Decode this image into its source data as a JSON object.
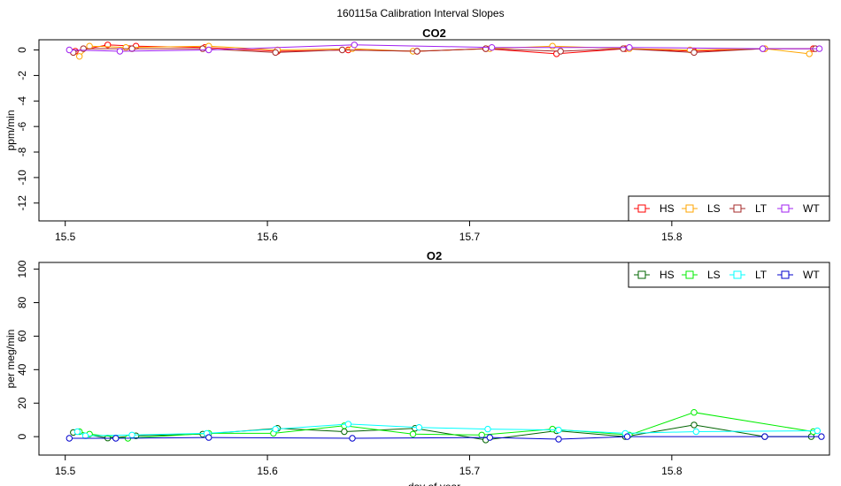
{
  "title": "160115a   Calibration Interval Slopes",
  "chart_data": [
    {
      "type": "line",
      "title": "CO2",
      "xlabel": "",
      "ylabel": "ppm/min",
      "xlim": [
        15.487,
        15.878
      ],
      "ylim": [
        -13.4,
        0.8
      ],
      "xticks": [
        15.5,
        15.6,
        15.7,
        15.8
      ],
      "xtick_labels": [
        "15.5",
        "15.6",
        "15.7",
        "15.8"
      ],
      "yticks": [
        0,
        -2,
        -4,
        -6,
        -8,
        -10,
        -12
      ],
      "ytick_labels": [
        "0",
        "-2",
        "-4",
        "-6",
        "-8",
        "-10",
        "-12"
      ],
      "legend_position": "bottom-right",
      "series": [
        {
          "name": "HS",
          "color": "#ff0000",
          "x": [
            15.505,
            15.521,
            15.535,
            15.569,
            15.605,
            15.64,
            15.674,
            15.708,
            15.743,
            15.777,
            15.811,
            15.846,
            15.87
          ],
          "y": [
            -0.1,
            0.4,
            0.3,
            0.2,
            -0.1,
            0.0,
            -0.1,
            0.1,
            -0.3,
            0.1,
            -0.1,
            0.1,
            0.1
          ]
        },
        {
          "name": "LS",
          "color": "#ffa500",
          "x": [
            15.507,
            15.512,
            15.53,
            15.571,
            15.605,
            15.642,
            15.672,
            15.71,
            15.741,
            15.779,
            15.809,
            15.846,
            15.868
          ],
          "y": [
            -0.5,
            0.3,
            0.2,
            0.3,
            0.0,
            0.1,
            -0.1,
            0.1,
            0.3,
            0.1,
            0.0,
            0.1,
            -0.3
          ]
        },
        {
          "name": "LT",
          "color": "#a52a2a",
          "x": [
            15.504,
            15.509,
            15.533,
            15.568,
            15.604,
            15.637,
            15.674,
            15.708,
            15.745,
            15.776,
            15.811,
            15.845,
            15.871
          ],
          "y": [
            -0.2,
            0.1,
            0.1,
            0.1,
            -0.2,
            0.0,
            -0.1,
            0.1,
            -0.1,
            0.1,
            -0.2,
            0.1,
            0.1
          ]
        },
        {
          "name": "WT",
          "color": "#a020f0",
          "x": [
            15.502,
            15.527,
            15.571,
            15.643,
            15.711,
            15.779,
            15.845,
            15.873
          ],
          "y": [
            0.0,
            -0.1,
            0.0,
            0.4,
            0.2,
            0.2,
            0.1,
            0.1
          ]
        }
      ]
    },
    {
      "type": "line",
      "title": "O2",
      "xlabel": "day of year",
      "ylabel": "per meg/min",
      "xlim": [
        15.487,
        15.878
      ],
      "ylim": [
        -11,
        104
      ],
      "xticks": [
        15.5,
        15.6,
        15.7,
        15.8
      ],
      "xtick_labels": [
        "15.5",
        "15.6",
        "15.7",
        "15.8"
      ],
      "yticks": [
        0,
        20,
        40,
        60,
        80,
        100
      ],
      "ytick_labels": [
        "0",
        "20",
        "40",
        "60",
        "80",
        "100"
      ],
      "legend_position": "top-right",
      "series": [
        {
          "name": "HS",
          "color": "#006400",
          "x": [
            15.504,
            15.521,
            15.535,
            15.568,
            15.605,
            15.638,
            15.673,
            15.708,
            15.743,
            15.777,
            15.811,
            15.846,
            15.869
          ],
          "y": [
            2.5,
            -0.8,
            0.5,
            1.5,
            5.0,
            3.0,
            5.0,
            -2.0,
            3.5,
            0.0,
            7.0,
            0.0,
            0.0
          ]
        },
        {
          "name": "LS",
          "color": "#00ee00",
          "x": [
            15.507,
            15.512,
            15.531,
            15.571,
            15.603,
            15.638,
            15.672,
            15.706,
            15.741,
            15.779,
            15.811,
            15.87
          ],
          "y": [
            3.0,
            1.5,
            -1.0,
            2.0,
            2.0,
            6.5,
            1.5,
            1.0,
            4.5,
            1.0,
            14.5,
            3.0
          ]
        },
        {
          "name": "LT",
          "color": "#00ffff",
          "x": [
            15.506,
            15.51,
            15.533,
            15.57,
            15.604,
            15.64,
            15.675,
            15.709,
            15.744,
            15.777,
            15.812,
            15.872
          ],
          "y": [
            3.0,
            0.5,
            1.0,
            2.0,
            4.5,
            7.5,
            5.5,
            4.5,
            4.0,
            2.0,
            3.0,
            3.5
          ]
        },
        {
          "name": "WT",
          "color": "#0000cd",
          "x": [
            15.502,
            15.525,
            15.571,
            15.642,
            15.71,
            15.744,
            15.778,
            15.846,
            15.874
          ],
          "y": [
            -1.0,
            -1.0,
            -0.5,
            -1.0,
            -0.5,
            -1.5,
            0.0,
            0.0,
            0.0
          ]
        }
      ]
    }
  ]
}
